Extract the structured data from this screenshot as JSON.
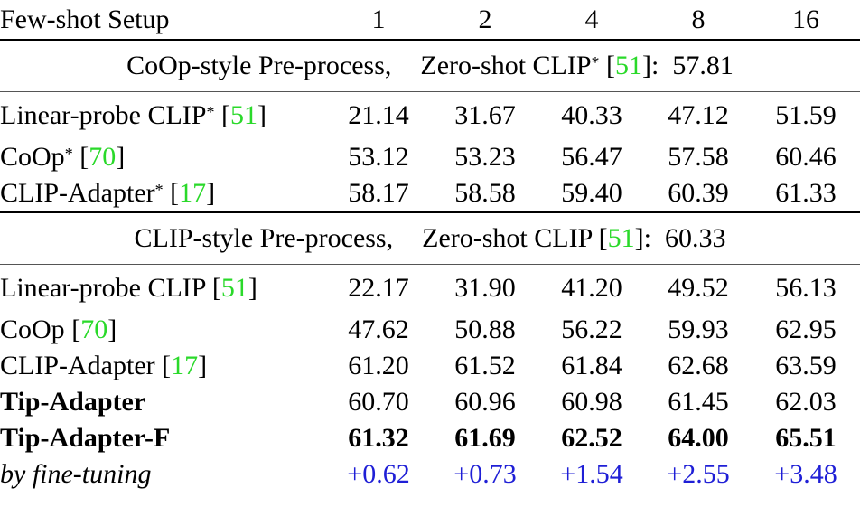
{
  "header": {
    "label": "Few-shot Setup",
    "shots": [
      "1",
      "2",
      "4",
      "8",
      "16"
    ]
  },
  "section1": {
    "text": "CoOp-style Pre-process,",
    "zs_text": "Zero-shot CLIP",
    "zs_sup": "*",
    "cite": "51",
    "value": "57.81"
  },
  "section2": {
    "text": "CLIP-style Pre-process,",
    "zs_text": "Zero-shot CLIP",
    "cite": "51",
    "value": "60.33"
  },
  "rows1": [
    {
      "name": "Linear-probe CLIP",
      "sup": "*",
      "cite": "51",
      "vals": [
        "21.14",
        "31.67",
        "40.33",
        "47.12",
        "51.59"
      ]
    },
    {
      "name": "CoOp",
      "sup": "*",
      "cite": "70",
      "vals": [
        "53.12",
        "53.23",
        "56.47",
        "57.58",
        "60.46"
      ]
    },
    {
      "name": "CLIP-Adapter",
      "sup": "*",
      "cite": "17",
      "vals": [
        "58.17",
        "58.58",
        "59.40",
        "60.39",
        "61.33"
      ]
    }
  ],
  "rows2": [
    {
      "name": "Linear-probe CLIP",
      "cite": "51",
      "vals": [
        "22.17",
        "31.90",
        "41.20",
        "49.52",
        "56.13"
      ]
    },
    {
      "name": "CoOp",
      "cite": "70",
      "vals": [
        "47.62",
        "50.88",
        "56.22",
        "59.93",
        "62.95"
      ]
    },
    {
      "name": "CLIP-Adapter",
      "cite": "17",
      "vals": [
        "61.20",
        "61.52",
        "61.84",
        "62.68",
        "63.59"
      ]
    },
    {
      "name": "Tip-Adapter",
      "vals": [
        "60.70",
        "60.96",
        "60.98",
        "61.45",
        "62.03"
      ]
    },
    {
      "name": "Tip-Adapter-F",
      "vals": [
        "61.32",
        "61.69",
        "62.52",
        "64.00",
        "65.51"
      ]
    },
    {
      "name": "by fine-tuning",
      "vals": [
        "+0.62",
        "+0.73",
        "+1.54",
        "+2.55",
        "+3.48"
      ]
    }
  ],
  "colors": {
    "citation": "#2ad92a",
    "delta": "#1f1fd6"
  }
}
